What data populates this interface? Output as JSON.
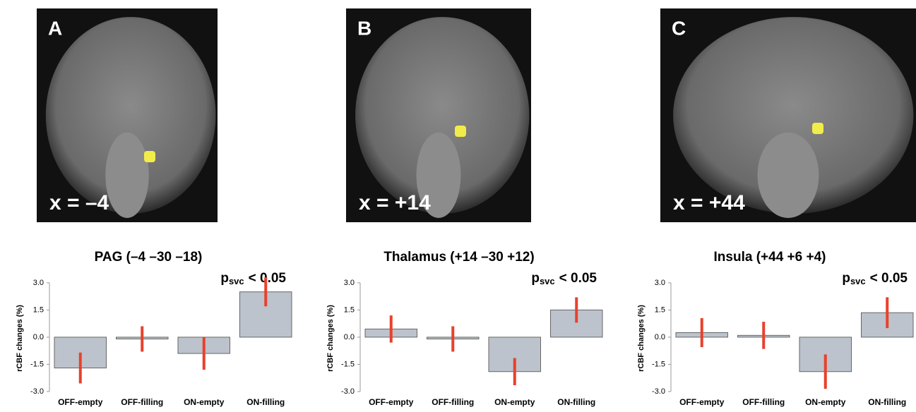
{
  "panels": [
    {
      "label": "A",
      "coord": "x = –4"
    },
    {
      "label": "B",
      "coord": "x = +14"
    },
    {
      "label": "C",
      "coord": "x = +44"
    }
  ],
  "chart_data": [
    {
      "type": "bar",
      "title": "PAG (–4 –30 –18)",
      "annotation": [
        "p",
        "svc",
        "< 0.05"
      ],
      "ylabel": "rCBF changes (%)",
      "categories": [
        "OFF-empty",
        "OFF-filling",
        "ON-empty",
        "ON-filling"
      ],
      "values": [
        -1.7,
        -0.1,
        -0.9,
        2.5
      ],
      "errors": [
        0.85,
        0.7,
        0.9,
        0.8
      ],
      "color": "#bcc3cc",
      "error_color": "#e8412c",
      "ylim": [
        -3,
        3.5
      ],
      "yticks": [
        {
          "value": 3,
          "label": "3.0"
        },
        1.5,
        {
          "value": 0,
          "label": "0.0"
        },
        -1.5,
        {
          "value": -3,
          "label": "-3.0"
        }
      ]
    },
    {
      "type": "bar",
      "title": "Thalamus (+14 –30 +12)",
      "annotation": [
        "p",
        "svc",
        "< 0.05"
      ],
      "ylabel": "rCBF changes (%)",
      "categories": [
        "OFF-empty",
        "OFF-filling",
        "ON-empty",
        "ON-filling"
      ],
      "values": [
        0.45,
        -0.1,
        -1.9,
        1.5
      ],
      "errors": [
        0.75,
        0.7,
        0.75,
        0.7
      ],
      "color": "#bcc3cc",
      "error_color": "#e8412c",
      "ylim": [
        -3,
        3.5
      ],
      "yticks": [
        {
          "value": 3,
          "label": "3.0"
        },
        1.5,
        {
          "value": 0,
          "label": "0.0"
        },
        -1.5,
        {
          "value": -3,
          "label": "-3.0"
        }
      ]
    },
    {
      "type": "bar",
      "title": "Insula (+44 +6 +4)",
      "annotation": [
        "p",
        "svc",
        "< 0.05"
      ],
      "ylabel": "rCBF changes (%)",
      "categories": [
        "OFF-empty",
        "OFF-filling",
        "ON-empty",
        "ON-filling"
      ],
      "values": [
        0.25,
        0.1,
        -1.9,
        1.35
      ],
      "errors": [
        0.8,
        0.75,
        0.95,
        0.85
      ],
      "color": "#bcc3cc",
      "error_color": "#e8412c",
      "ylim": [
        -3,
        3.5
      ],
      "yticks": [
        {
          "value": 3,
          "label": "3.0"
        },
        1.5,
        {
          "value": 0,
          "label": "0.0"
        },
        -1.5,
        {
          "value": -3,
          "label": "-3.0"
        }
      ]
    }
  ]
}
